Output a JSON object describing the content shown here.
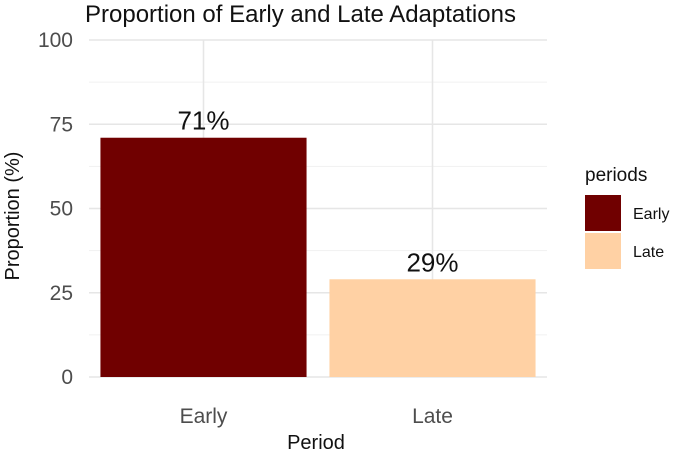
{
  "chart_data": {
    "type": "bar",
    "title": "Proportion of Early and Late Adaptations",
    "xlabel": "Period",
    "ylabel": "Proportion (%)",
    "categories": [
      "Early",
      "Late"
    ],
    "values": [
      71,
      29
    ],
    "data_labels": [
      "71%",
      "29%"
    ],
    "ylim": [
      0,
      100
    ],
    "yticks": [
      0,
      25,
      50,
      75,
      100
    ],
    "colors": [
      "#700000",
      "#FFD1A4"
    ],
    "grid": true,
    "legend": {
      "title": "periods",
      "position": "right",
      "entries": [
        "Early",
        "Late"
      ]
    }
  }
}
